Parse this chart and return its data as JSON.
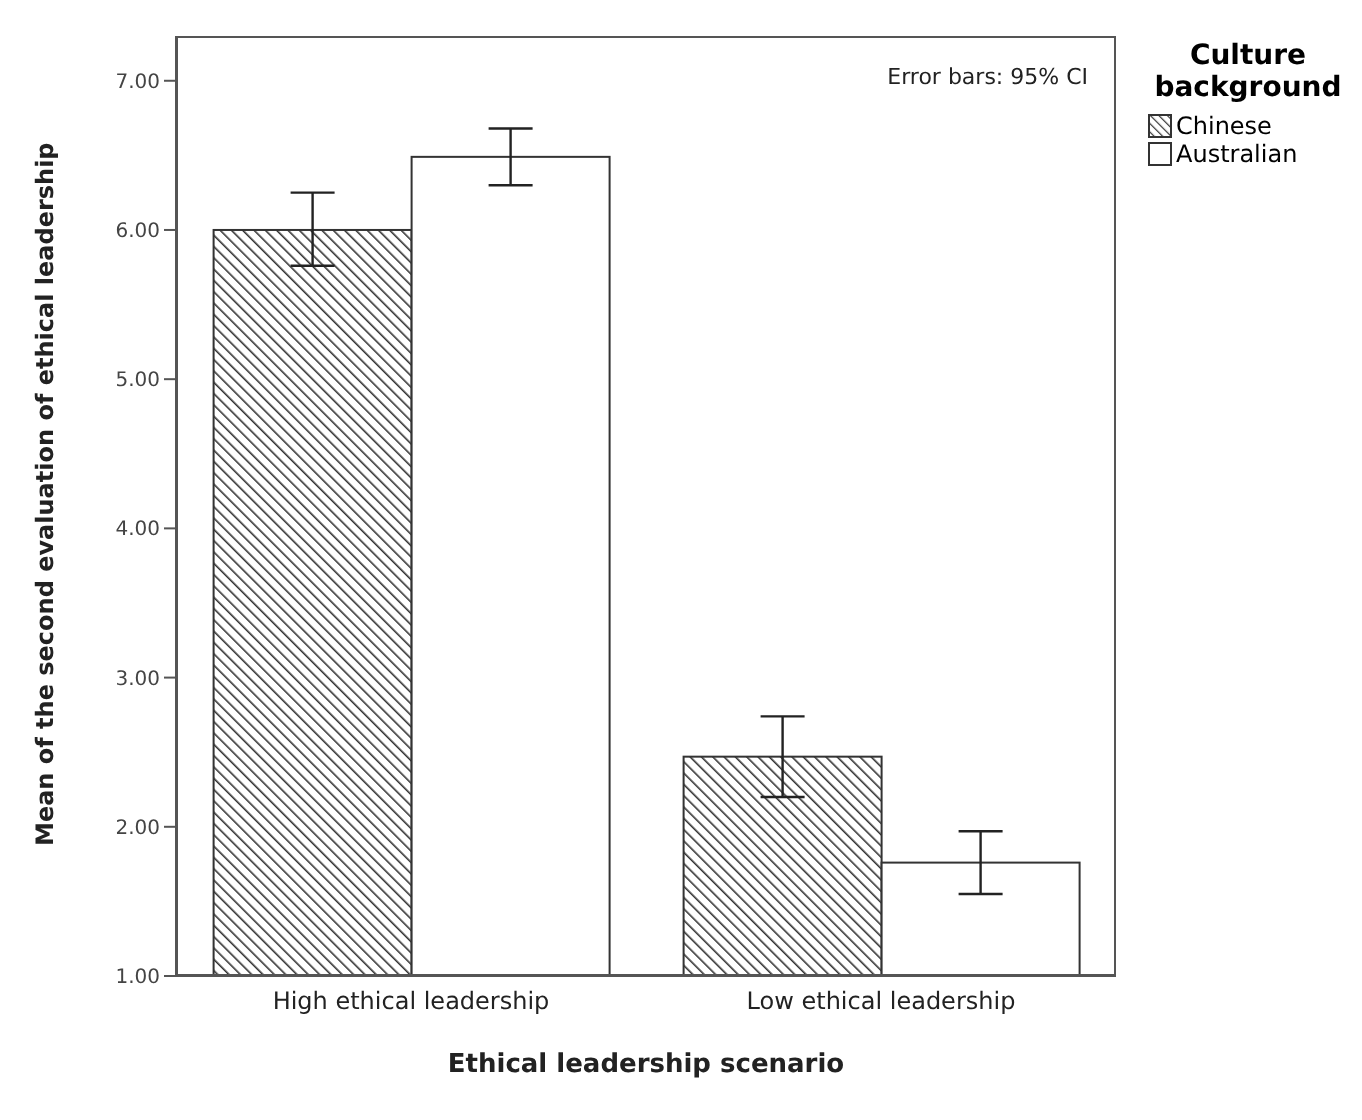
{
  "chart_data": {
    "type": "bar",
    "xlabel": "Ethical leadership scenario",
    "ylabel": "Mean of the second evaluation of ethical leadership",
    "legend_title": "Culture background",
    "categories": [
      "High ethical leadership",
      "Low ethical leadership"
    ],
    "series": [
      {
        "name": "Chinese",
        "color": "#333333",
        "values": [
          6.0,
          2.47
        ],
        "errors": [
          [
            5.76,
            6.25
          ],
          [
            2.2,
            2.74
          ]
        ]
      },
      {
        "name": "Australian",
        "color": "#ffffff",
        "values": [
          6.49,
          1.76
        ],
        "errors": [
          [
            6.3,
            6.68
          ],
          [
            1.55,
            1.97
          ]
        ]
      }
    ],
    "ylim": [
      1,
      7.3
    ],
    "yticks": [
      {
        "value": 1,
        "label": "1.00"
      },
      {
        "value": 2,
        "label": "2.00"
      },
      {
        "value": 3,
        "label": "3.00"
      },
      {
        "value": 4,
        "label": "4.00"
      },
      {
        "value": 5,
        "label": "5.00"
      },
      {
        "value": 6,
        "label": "6.00"
      },
      {
        "value": 7,
        "label": "7.00"
      }
    ],
    "grid": false,
    "legend": "top right",
    "annotations": [
      "Error bars: 95% CI"
    ]
  }
}
